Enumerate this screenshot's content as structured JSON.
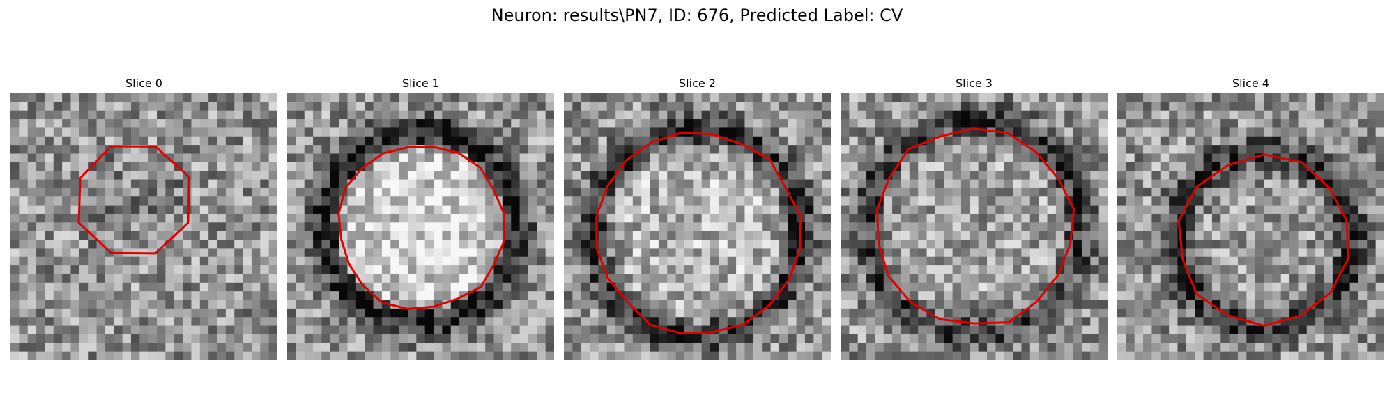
{
  "figure": {
    "title": "Neuron: results\\PN7, ID: 676, Predicted Label: CV"
  },
  "slices": [
    {
      "label": "Slice 0"
    },
    {
      "label": "Slice 1"
    },
    {
      "label": "Slice 2"
    },
    {
      "label": "Slice 3"
    },
    {
      "label": "Slice 4"
    }
  ],
  "colors": {
    "contour": "#e00000",
    "background": "#ffffff"
  }
}
